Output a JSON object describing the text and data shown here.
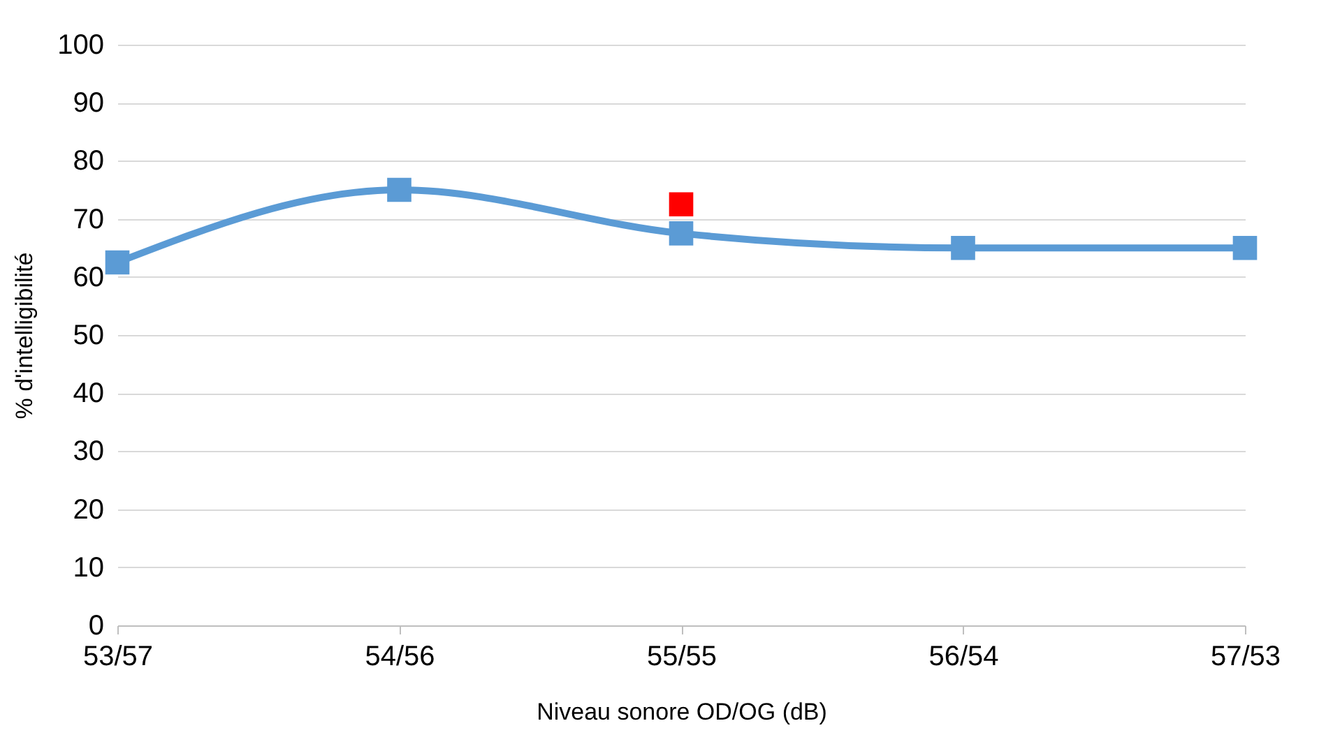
{
  "chart_data": {
    "type": "line",
    "xlabel": "Niveau sonore OD/OG (dB)",
    "ylabel": "% d'intelligibilité",
    "categories": [
      "53/57",
      "54/56",
      "55/55",
      "56/54",
      "57/53"
    ],
    "series": [
      {
        "color": "#5b9bd5",
        "values": [
          62.5,
          75,
          67.5,
          65,
          65
        ]
      },
      {
        "type": "scatter",
        "color": "#ff0000",
        "values": [
          null,
          null,
          72.5,
          null,
          null
        ]
      }
    ],
    "ylim": [
      0,
      100
    ],
    "yticks": [
      0,
      10,
      20,
      30,
      40,
      50,
      60,
      70,
      80,
      90,
      100
    ],
    "grid": "y",
    "marker": "square"
  }
}
